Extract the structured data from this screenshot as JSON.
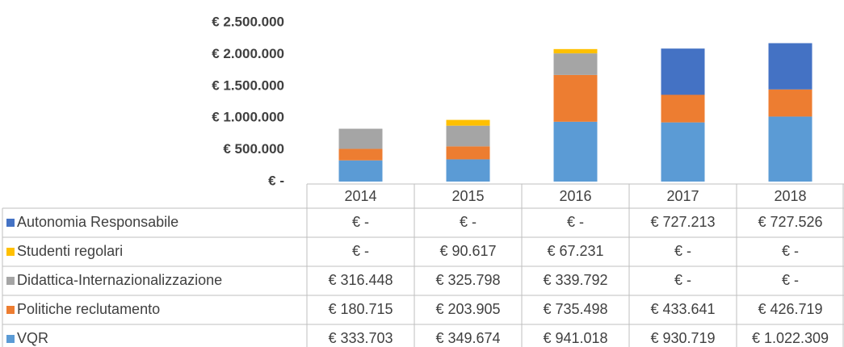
{
  "chart_data": {
    "type": "bar",
    "stacked": true,
    "categories": [
      "2014",
      "2015",
      "2016",
      "2017",
      "2018"
    ],
    "series": [
      {
        "name": "VQR",
        "color": "#5b9bd5",
        "values": [
          333703,
          349674,
          941018,
          930719,
          1022309
        ],
        "value_labels": [
          "€ 333.703",
          "€ 349.674",
          "€ 941.018",
          "€ 930.719",
          "€ 1.022.309"
        ]
      },
      {
        "name": "Politiche reclutamento",
        "color": "#ed7d31",
        "values": [
          180715,
          203905,
          735498,
          433641,
          426719
        ],
        "value_labels": [
          "€ 180.715",
          "€ 203.905",
          "€ 735.498",
          "€ 433.641",
          "€ 426.719"
        ]
      },
      {
        "name": "Didattica-Internazionalizzazione",
        "color": "#a5a5a5",
        "values": [
          316448,
          325798,
          339792,
          0,
          0
        ],
        "value_labels": [
          "€ 316.448",
          "€ 325.798",
          "€ 339.792",
          "€ -",
          "€ -"
        ]
      },
      {
        "name": "Studenti regolari",
        "color": "#ffc000",
        "values": [
          0,
          90617,
          67231,
          0,
          0
        ],
        "value_labels": [
          "€ -",
          "€ 90.617",
          "€ 67.231",
          "€ -",
          "€ -"
        ]
      },
      {
        "name": "Autonomia Responsabile",
        "color": "#4472c4",
        "values": [
          0,
          0,
          0,
          727213,
          727526
        ],
        "value_labels": [
          "€ -",
          "€ -",
          "€ -",
          "€ 727.213",
          "€ 727.526"
        ]
      }
    ],
    "ylim": [
      0,
      2500000
    ],
    "yticks": [
      {
        "value": 0,
        "label": "€ -"
      },
      {
        "value": 500000,
        "label": "€ 500.000"
      },
      {
        "value": 1000000,
        "label": "€ 1.000.000"
      },
      {
        "value": 1500000,
        "label": "€ 1.500.000"
      },
      {
        "value": 2000000,
        "label": "€ 2.000.000"
      },
      {
        "value": 2500000,
        "label": "€ 2.500.000"
      }
    ],
    "grid": false,
    "legend": "table"
  }
}
